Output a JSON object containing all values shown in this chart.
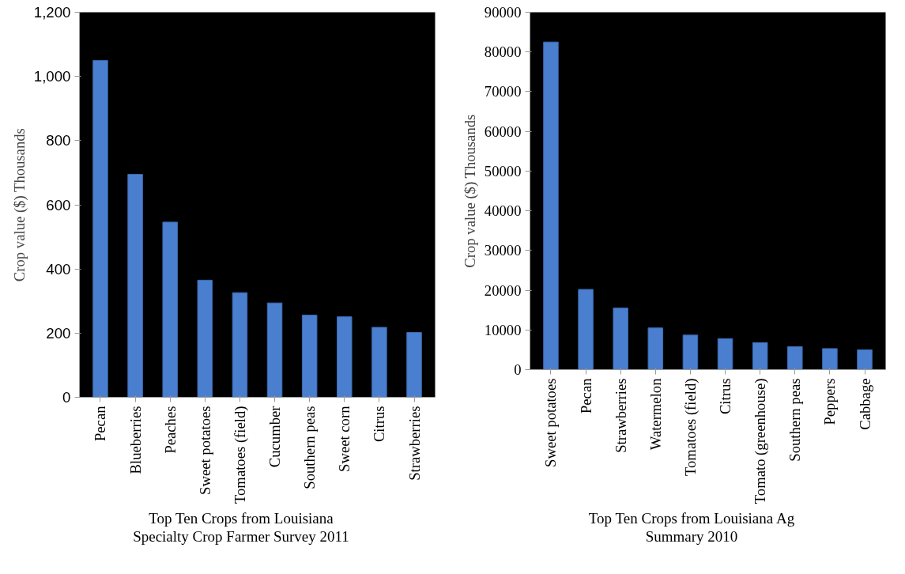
{
  "chart_data": [
    {
      "type": "bar",
      "title": "Top Ten Crops from Louisiana Specialty Crop Farmer Survey 2011",
      "ylabel": "Crop value ($) Thousands",
      "categories": [
        "Pecan",
        "Blueberries",
        "Peaches",
        "Sweet potatoes",
        "Tomatoes (field)",
        "Cucumber",
        "Southern peas",
        "Sweet corn",
        "Citrus",
        "Strawberries"
      ],
      "values": [
        1050,
        695,
        546,
        365,
        326,
        294,
        256,
        251,
        218,
        202
      ],
      "color": "#4a7fd0",
      "ylim": [
        0,
        1200
      ],
      "yticks": [
        0,
        200,
        400,
        600,
        800,
        {
          "value": 1000,
          "label": "1,000"
        },
        {
          "value": 1200,
          "label": "1,200"
        }
      ],
      "grid": false
    },
    {
      "type": "bar",
      "title": "Top Ten Crops from Louisiana Ag Summary 2010",
      "ylabel": "Crop value ($) Thousands",
      "categories": [
        "Sweet potatoes",
        "Pecan",
        "Strawberries",
        "Watermelon",
        "Tomatoes (field)",
        "Citrus",
        "Tomato (greenhouse)",
        "Southern peas",
        "Peppers",
        "Cabbage"
      ],
      "values": [
        82500,
        20200,
        15500,
        10500,
        8700,
        7800,
        6800,
        5800,
        5300,
        5000
      ],
      "color": "#4a7fd0",
      "ylim": [
        0,
        90000
      ],
      "yticks": [
        0,
        10000,
        20000,
        30000,
        40000,
        50000,
        60000,
        70000,
        80000,
        90000
      ],
      "grid": false
    }
  ]
}
